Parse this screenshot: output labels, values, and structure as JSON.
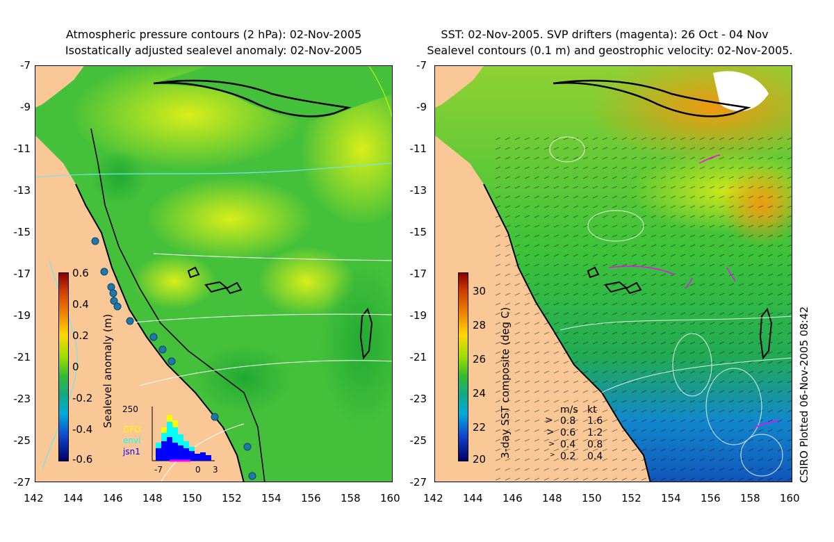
{
  "left_panel": {
    "title_line1": "Atmospheric pressure contours (2 hPa): 02-Nov-2005",
    "title_line2": "Isostatically adjusted sealevel anomaly: 02-Nov-2005",
    "colorbar_label": "Sealevel anomaly (m)",
    "colorbar_ticks": [
      "0.6",
      "0.4",
      "0.2",
      "0",
      "-0.2",
      "-0.4",
      "-0.6"
    ],
    "inset": {
      "ymax_label": "250",
      "legend": [
        {
          "name": "GFO",
          "color": "#ffff00"
        },
        {
          "name": "envi",
          "color": "#00ffff"
        },
        {
          "name": "jsn1",
          "color": "#0000ff"
        }
      ],
      "x_labels": [
        "-7",
        "0",
        "3"
      ]
    }
  },
  "right_panel": {
    "title_line1": "SST: 02-Nov-2005. SVP drifters (magenta): 26 Oct - 04 Nov",
    "title_line2": "Sealevel contours (0.1 m) and geostrophic velocity: 02-Nov-2005.",
    "colorbar_label": "3-day SST composite (deg C)",
    "colorbar_ticks": [
      "30",
      "28",
      "26",
      "24",
      "22",
      "20"
    ],
    "velocity_key": {
      "header_ms": "m/s",
      "header_kt": "kt",
      "rows": [
        {
          "ms": "0.8",
          "kt": "1.6"
        },
        {
          "ms": "0.6",
          "kt": "1.2"
        },
        {
          "ms": "0.4",
          "kt": "0.8"
        },
        {
          "ms": "0.2",
          "kt": "0.4"
        }
      ]
    }
  },
  "axes": {
    "lat_ticks": [
      "-7",
      "-9",
      "-11",
      "-13",
      "-15",
      "-17",
      "-19",
      "-21",
      "-23",
      "-25",
      "-27"
    ],
    "lon_ticks": [
      "142",
      "144",
      "146",
      "148",
      "150",
      "152",
      "154",
      "156",
      "158",
      "160"
    ]
  },
  "credit": "CSIRO Plotted 06-Nov-2005 08:42",
  "colors": {
    "land": "#f9c896",
    "ocean_green": "#33cc33",
    "ocean_yellow": "#ccee22",
    "ocean_blue": "#1177dd",
    "sst_orange": "#ee9911"
  }
}
